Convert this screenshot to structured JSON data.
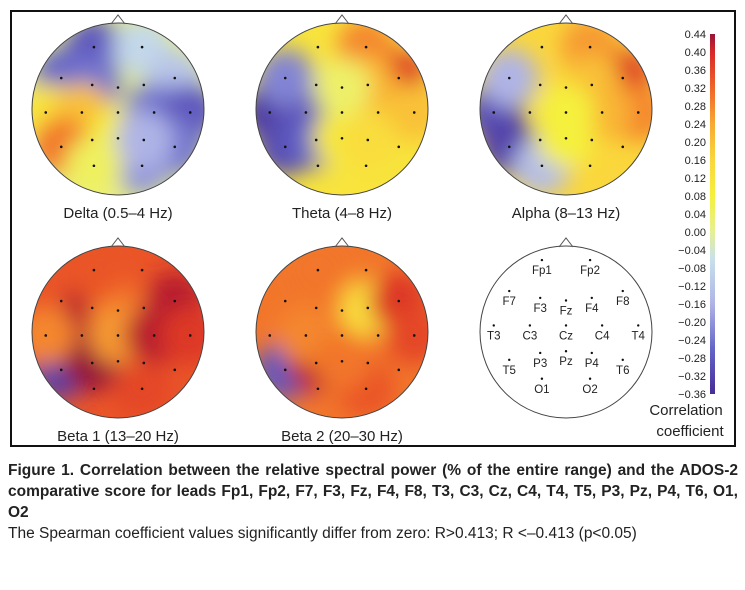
{
  "chart_data": {
    "type": "heatmap",
    "subtype": "scalp-topography",
    "maps": [
      {
        "label": "Delta (0.5–4 Hz)",
        "hotspots": [
          {
            "electrode": "Fp1",
            "value": -0.28
          },
          {
            "electrode": "F7",
            "value": -0.26
          },
          {
            "electrode": "F3",
            "value": -0.24
          },
          {
            "electrode": "Fp2",
            "value": -0.08
          },
          {
            "electrode": "F8",
            "value": -0.12
          },
          {
            "electrode": "T3",
            "value": 0.12
          },
          {
            "electrode": "C3",
            "value": 0.2
          },
          {
            "electrode": "T5",
            "value": 0.3
          },
          {
            "electrode": "Pz",
            "value": 0.08
          },
          {
            "electrode": "C4",
            "value": -0.24
          },
          {
            "electrode": "T4",
            "value": -0.28
          },
          {
            "electrode": "T6",
            "value": -0.24
          },
          {
            "electrode": "O2",
            "value": -0.2
          },
          {
            "electrode": "P4",
            "value": -0.16
          },
          {
            "electrode": "O1",
            "value": 0.05
          }
        ]
      },
      {
        "label": "Theta (4–8 Hz)",
        "hotspots": [
          {
            "electrode": "F8",
            "value": 0.38
          },
          {
            "electrode": "Fp2",
            "value": 0.28
          },
          {
            "electrode": "F4",
            "value": 0.22
          },
          {
            "electrode": "T4",
            "value": 0.2
          },
          {
            "electrode": "T3",
            "value": -0.34
          },
          {
            "electrode": "C3",
            "value": -0.3
          },
          {
            "electrode": "F7",
            "value": -0.22
          },
          {
            "electrode": "T5",
            "value": -0.3
          },
          {
            "electrode": "P3",
            "value": -0.26
          },
          {
            "electrode": "Pz",
            "value": 0.1
          },
          {
            "electrode": "P4",
            "value": 0.14
          },
          {
            "electrode": "Fz",
            "value": 0.04
          }
        ]
      },
      {
        "label": "Alpha (8–13 Hz)",
        "hotspots": [
          {
            "electrode": "F8",
            "value": 0.38
          },
          {
            "electrode": "Fp2",
            "value": 0.26
          },
          {
            "electrode": "F4",
            "value": 0.2
          },
          {
            "electrode": "T4",
            "value": 0.28
          },
          {
            "electrode": "C4",
            "value": 0.22
          },
          {
            "electrode": "T3",
            "value": -0.3
          },
          {
            "electrode": "T5",
            "value": -0.32
          },
          {
            "electrode": "F7",
            "value": -0.16
          },
          {
            "electrode": "O1",
            "value": -0.14
          },
          {
            "electrode": "Cz",
            "value": 0.08
          },
          {
            "electrode": "Pz",
            "value": 0.08
          }
        ]
      },
      {
        "label": "Beta 1 (13–20 Hz)",
        "hotspots": [
          {
            "electrode": "T5",
            "value": -0.32
          },
          {
            "electrode": "F3",
            "value": 0.42
          },
          {
            "electrode": "P3",
            "value": 0.44
          },
          {
            "electrode": "Fz",
            "value": 0.3
          },
          {
            "electrode": "Cz",
            "value": 0.26
          },
          {
            "electrode": "C4",
            "value": 0.42
          },
          {
            "electrode": "F8",
            "value": 0.42
          },
          {
            "electrode": "T4",
            "value": 0.38
          },
          {
            "electrode": "O2",
            "value": 0.36
          },
          {
            "electrode": "Fp1",
            "value": 0.34
          },
          {
            "electrode": "T3",
            "value": 0.28
          }
        ]
      },
      {
        "label": "Beta 2 (20–30 Hz)",
        "hotspots": [
          {
            "electrode": "T5",
            "value": -0.28
          },
          {
            "electrode": "P3",
            "value": 0.42
          },
          {
            "electrode": "Cz",
            "value": 0.3
          },
          {
            "electrode": "F4",
            "value": 0.14
          },
          {
            "electrode": "F8",
            "value": 0.38
          },
          {
            "electrode": "T4",
            "value": 0.36
          },
          {
            "electrode": "O2",
            "value": 0.34
          },
          {
            "electrode": "C3",
            "value": 0.28
          },
          {
            "electrode": "Fp1",
            "value": 0.3
          },
          {
            "electrode": "Pz",
            "value": 0.3
          }
        ]
      }
    ],
    "electrodes": [
      "Fp1",
      "Fp2",
      "F7",
      "F3",
      "Fz",
      "F4",
      "F8",
      "T3",
      "C3",
      "Cz",
      "C4",
      "T4",
      "P3",
      "Pz",
      "P4",
      "T5",
      "T6",
      "O1",
      "O2"
    ],
    "colorbar": {
      "ticks": [
        "0.44",
        "0.40",
        "0.36",
        "0.32",
        "0.28",
        "0.24",
        "0.20",
        "0.16",
        "0.12",
        "0.08",
        "0.04",
        "0.00",
        "−0.04",
        "−0.08",
        "−0.12",
        "−0.16",
        "−0.20",
        "−0.24",
        "−0.28",
        "−0.32",
        "−0.36"
      ],
      "range": [
        -0.36,
        0.44
      ],
      "label_line1": "Correlation",
      "label_line2": "coefficient"
    }
  },
  "caption": {
    "title": "Figure 1. Correlation between the relative spectral power (% of the entire range) and the ADOS-2 comparative score for leads Fp1, Fp2, F7, F3, Fz, F4, F8, T3, C3, Cz, C4, T4, T5, P3, Pz, P4, T6, O1, O2",
    "note": "The Spearman coefficient values significantly differ from zero: R>0.413; R <–0.413 (p<0.05)"
  }
}
